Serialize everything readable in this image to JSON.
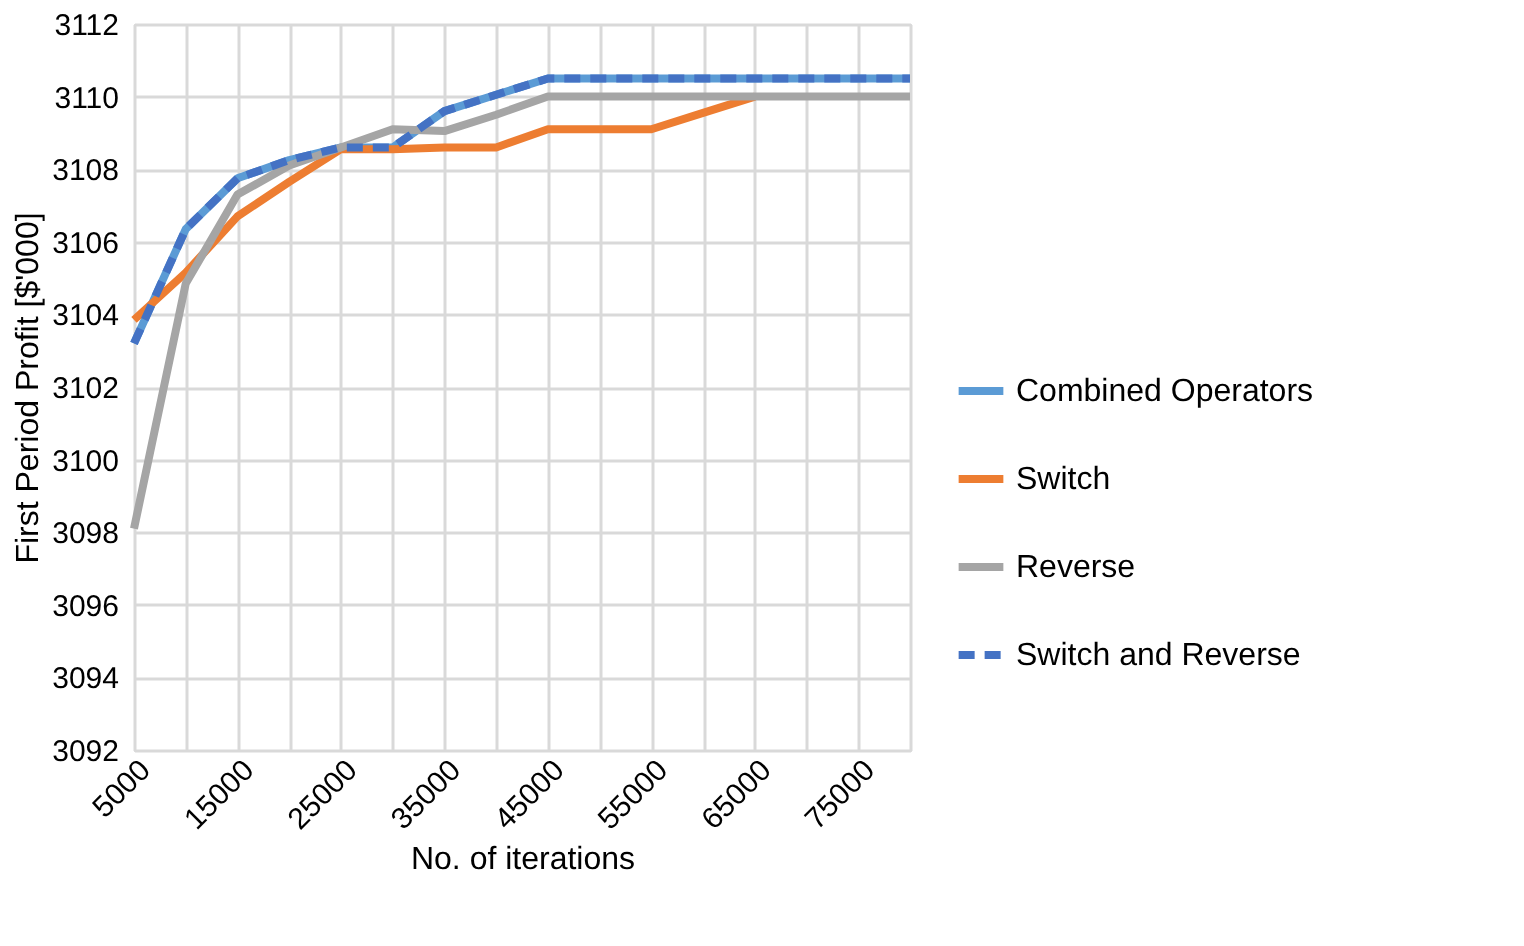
{
  "chart_data": {
    "type": "line",
    "xlabel": "No. of iterations",
    "ylabel": "First Period Profit  [$'000]",
    "x": [
      5000,
      10000,
      15000,
      20000,
      25000,
      30000,
      35000,
      40000,
      45000,
      50000,
      55000,
      60000,
      65000,
      70000,
      75000,
      80000
    ],
    "series": [
      {
        "name": "Combined Operators",
        "color": "#5b9bd5",
        "line_style": "solid",
        "values": [
          3103.2,
          3106.35,
          3107.75,
          3108.25,
          3108.6,
          3108.6,
          3109.6,
          3110.05,
          3110.5,
          3110.5,
          3110.5,
          3110.5,
          3110.5,
          3110.5,
          3110.5,
          3110.5
        ]
      },
      {
        "name": "Switch",
        "color": "#ed7d31",
        "line_style": "solid",
        "values": [
          3103.85,
          3105.15,
          3106.7,
          3107.65,
          3108.55,
          3108.55,
          3108.6,
          3108.6,
          3109.1,
          3109.1,
          3109.1,
          3109.55,
          3110,
          null,
          null,
          null
        ]
      },
      {
        "name": "Reverse",
        "color": "#a5a5a5",
        "line_style": "solid",
        "values": [
          3098.1,
          3104.85,
          3107.3,
          3108.1,
          3108.6,
          3109.1,
          3109.05,
          3109.5,
          3110,
          3110,
          3110,
          3110,
          3110,
          3110,
          3110,
          3110
        ]
      },
      {
        "name": "Switch and Reverse",
        "color": "#4472c4",
        "line_style": "dashed",
        "values": [
          3103.2,
          3106.35,
          3107.75,
          3108.25,
          3108.6,
          3108.6,
          3109.6,
          3110.05,
          3110.5,
          3110.5,
          3110.5,
          3110.5,
          3110.5,
          3110.5,
          3110.5,
          3110.5
        ]
      }
    ],
    "xlim": [
      5000,
      80000
    ],
    "xticks": [
      5000,
      {
        "value": 10000,
        "label": null
      },
      15000,
      {
        "value": 20000,
        "label": null
      },
      25000,
      {
        "value": 30000,
        "label": null
      },
      35000,
      {
        "value": 40000,
        "label": null
      },
      45000,
      {
        "value": 50000,
        "label": null
      },
      55000,
      {
        "value": 60000,
        "label": null
      },
      65000,
      {
        "value": 70000,
        "label": null
      },
      75000,
      {
        "value": 80000,
        "label": null
      }
    ],
    "ylim": [
      3092,
      3112
    ],
    "yticks": [
      3092,
      3094,
      3096,
      3098,
      3100,
      3102,
      3104,
      3106,
      3108,
      3110,
      3112
    ],
    "grid": true,
    "legend": "right",
    "marker": "none"
  }
}
